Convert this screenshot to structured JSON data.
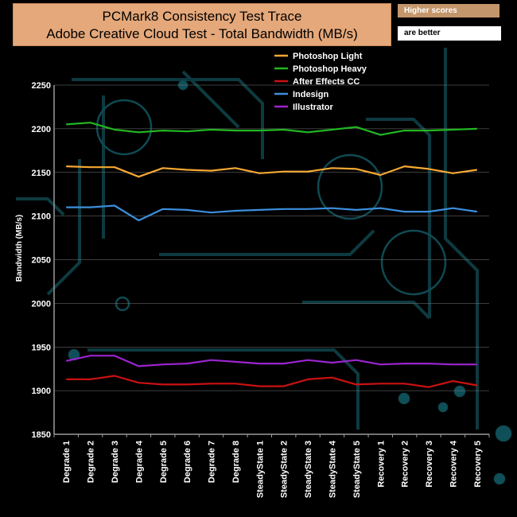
{
  "header": {
    "title_line1": "PCMark8 Consistency Test Trace",
    "title_line2": "Adobe Creative Cloud Test - Total Bandwidth (MB/s)",
    "note_top": "Higher scores",
    "note_bottom": "are better"
  },
  "chart_data": {
    "type": "line",
    "ylabel": "Bandwidth (MB/s)",
    "ylim": [
      1850,
      2250
    ],
    "ytick_step": 50,
    "legend_position": "top-right",
    "categories": [
      "Degrade 1",
      "Degrade 2",
      "Degrade 3",
      "Degrade 4",
      "Degrade 5",
      "Degrade 6",
      "Degrade 7",
      "Degrade 8",
      "SteadyState 1",
      "SteadyState 2",
      "SteadyState 3",
      "SteadyState 4",
      "SteadyState 5",
      "Recovery 1",
      "Recovery 2",
      "Recovery 3",
      "Recovery 4",
      "Recovery 5"
    ],
    "series": [
      {
        "name": "Photoshop Light",
        "color": "#f7a833",
        "values": [
          2157,
          2156,
          2156,
          2145,
          2155,
          2153,
          2152,
          2155,
          2149,
          2151,
          2151,
          2155,
          2154,
          2147,
          2157,
          2154,
          2149,
          2153
        ]
      },
      {
        "name": " Photoshop Heavy",
        "color": "#22b722",
        "values": [
          2205,
          2207,
          2199,
          2196,
          2198,
          2197,
          2199,
          2198,
          2198,
          2199,
          2196,
          2199,
          2202,
          2193,
          2198,
          2198,
          2199,
          2200
        ]
      },
      {
        "name": "After Effects CC",
        "color": "#cc1111",
        "values": [
          1913,
          1913,
          1917,
          1909,
          1907,
          1907,
          1908,
          1908,
          1905,
          1905,
          1913,
          1915,
          1907,
          1908,
          1908,
          1904,
          1911,
          1906
        ]
      },
      {
        "name": "Indesign",
        "color": "#3c8fde",
        "values": [
          2110,
          2110,
          2112,
          2095,
          2108,
          2107,
          2104,
          2106,
          2107,
          2108,
          2108,
          2109,
          2107,
          2109,
          2105,
          2105,
          2109,
          2105
        ]
      },
      {
        "name": "Illustrator",
        "color": "#9b25cf",
        "values": [
          1934,
          1940,
          1940,
          1928,
          1930,
          1931,
          1935,
          1933,
          1931,
          1931,
          1935,
          1932,
          1935,
          1930,
          1931,
          1931,
          1930,
          1930
        ]
      }
    ]
  }
}
